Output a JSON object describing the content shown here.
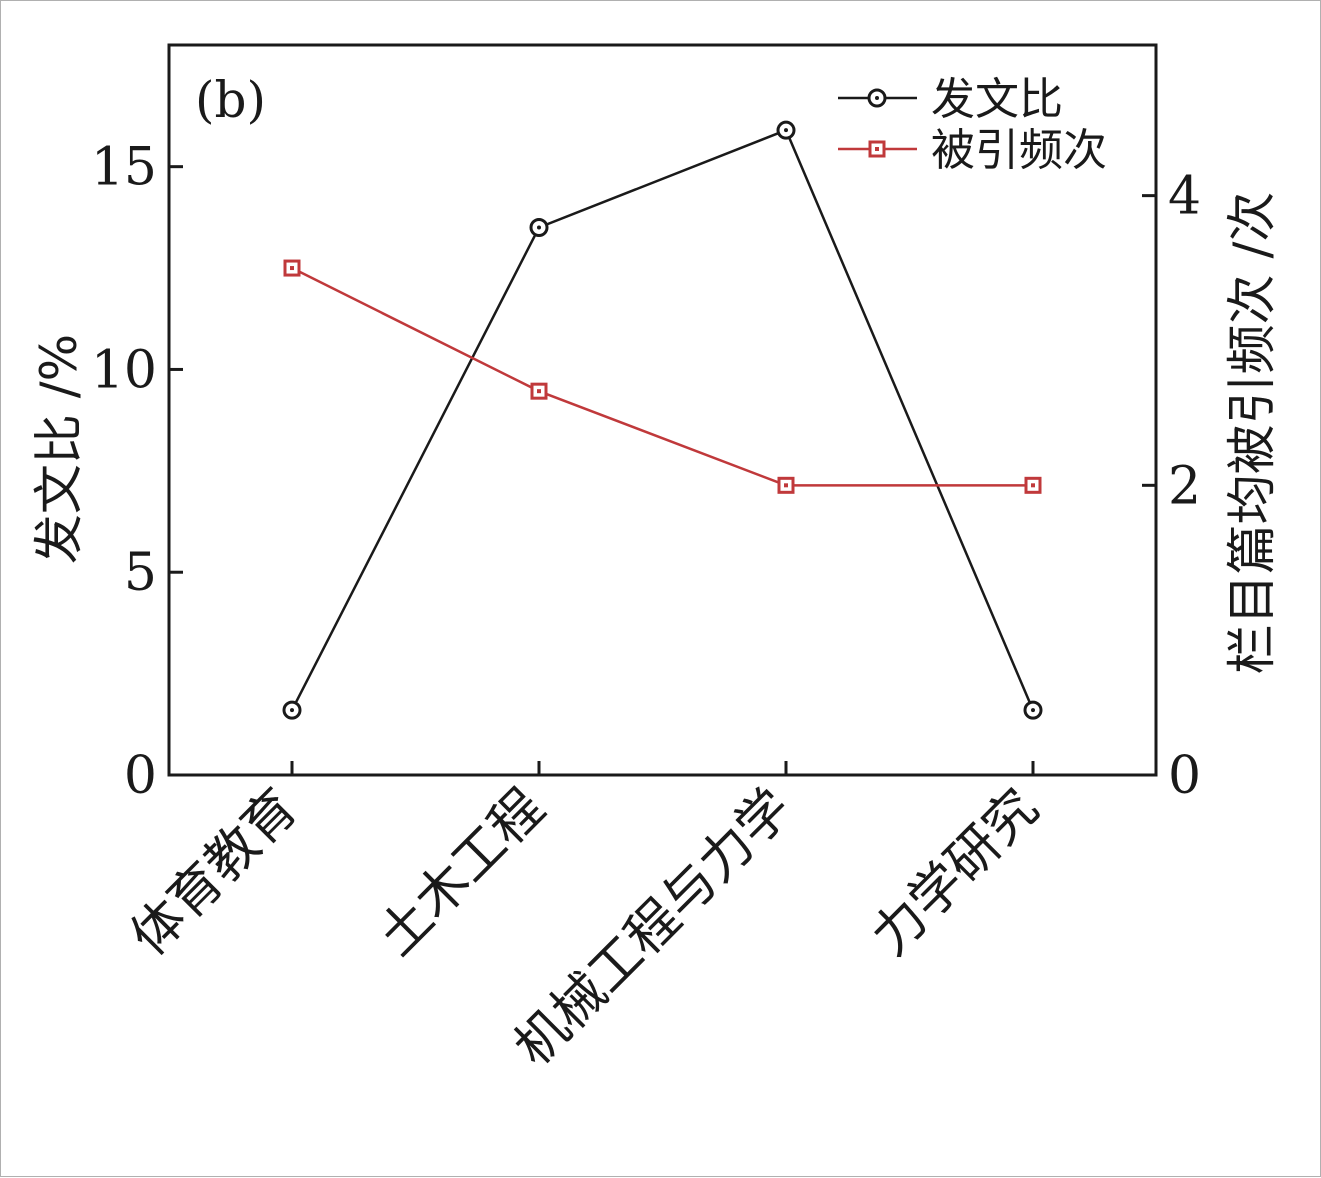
{
  "chart_data": {
    "type": "line",
    "panel_label": "(b)",
    "categories": [
      "体育教育",
      "土木工程",
      "机械工程与力学",
      "力学研究"
    ],
    "series": [
      {
        "name": "发文比",
        "axis": "left",
        "values": [
          1.6,
          13.5,
          15.9,
          1.6
        ],
        "color": "#1a1a1a",
        "marker": "circle"
      },
      {
        "name": "被引频次",
        "axis": "right",
        "values": [
          3.5,
          2.65,
          2.0,
          2.0
        ],
        "color": "#c0393b",
        "marker": "square"
      }
    ],
    "ylabel": "发文比 /%",
    "ylabel_right": "栏目篇均被引频次 /次",
    "ylim": [
      0,
      18
    ],
    "ylim_right": [
      0,
      5.04
    ],
    "yticks": [
      "0",
      "5",
      "10",
      "15"
    ],
    "yticks_right": [
      "0",
      "2",
      "4"
    ],
    "grid": false,
    "legend": "top-right"
  }
}
